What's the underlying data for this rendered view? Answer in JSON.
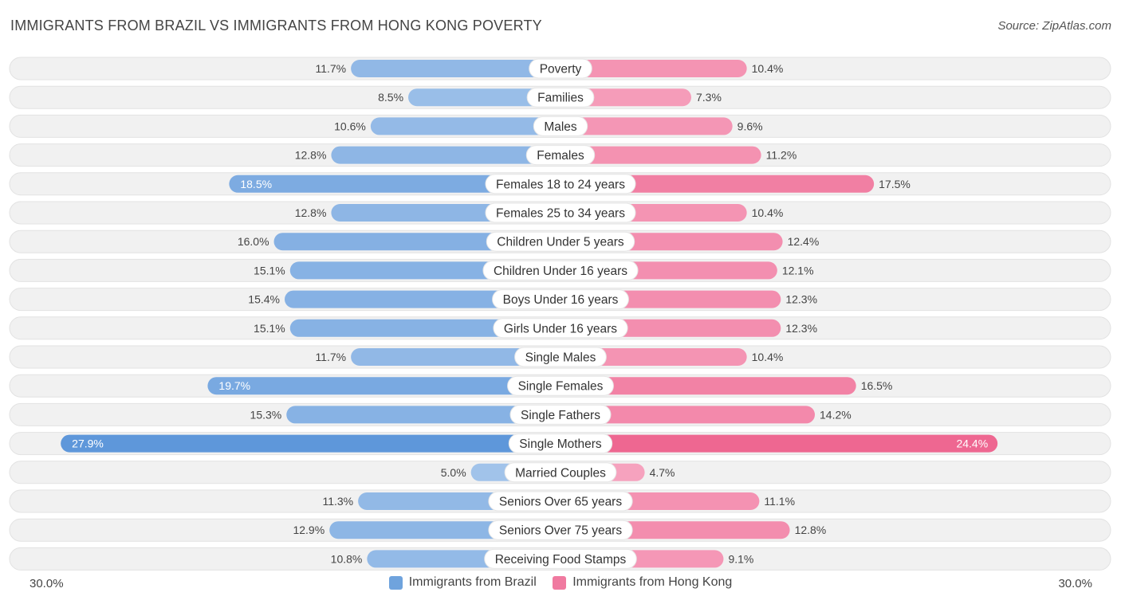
{
  "title": "IMMIGRANTS FROM BRAZIL VS IMMIGRANTS FROM HONG KONG POVERTY",
  "source": "Source: ZipAtlas.com",
  "colors": {
    "brazil": "#6fa3dd",
    "brazil_light": "#a9c8ec",
    "brazil_strong": "#5e97da",
    "hongkong": "#f07aa0",
    "hongkong_light": "#f7aac4",
    "hongkong_strong": "#ee6791"
  },
  "chart_data": {
    "type": "bar",
    "orientation": "horizontal-diverging",
    "title": "IMMIGRANTS FROM BRAZIL VS IMMIGRANTS FROM HONG KONG POVERTY",
    "axis_min_label": "30.0%",
    "axis_max_label": "30.0%",
    "xlim": [
      -30,
      30
    ],
    "categories": [
      "Poverty",
      "Families",
      "Males",
      "Females",
      "Females 18 to 24 years",
      "Females 25 to 34 years",
      "Children Under 5 years",
      "Children Under 16 years",
      "Boys Under 16 years",
      "Girls Under 16 years",
      "Single Males",
      "Single Females",
      "Single Fathers",
      "Single Mothers",
      "Married Couples",
      "Seniors Over 65 years",
      "Seniors Over 75 years",
      "Receiving Food Stamps"
    ],
    "series": [
      {
        "name": "Immigrants from Brazil",
        "values": [
          11.7,
          8.5,
          10.6,
          12.8,
          18.5,
          12.8,
          16.0,
          15.1,
          15.4,
          15.1,
          11.7,
          19.7,
          15.3,
          27.9,
          5.0,
          11.3,
          12.9,
          10.8
        ],
        "labels": [
          "11.7%",
          "8.5%",
          "10.6%",
          "12.8%",
          "18.5%",
          "12.8%",
          "16.0%",
          "15.1%",
          "15.4%",
          "15.1%",
          "11.7%",
          "19.7%",
          "15.3%",
          "27.9%",
          "5.0%",
          "11.3%",
          "12.9%",
          "10.8%"
        ]
      },
      {
        "name": "Immigrants from Hong Kong",
        "values": [
          10.4,
          7.3,
          9.6,
          11.2,
          17.5,
          10.4,
          12.4,
          12.1,
          12.3,
          12.3,
          10.4,
          16.5,
          14.2,
          24.4,
          4.7,
          11.1,
          12.8,
          9.1
        ],
        "labels": [
          "10.4%",
          "7.3%",
          "9.6%",
          "11.2%",
          "17.5%",
          "10.4%",
          "12.4%",
          "12.1%",
          "12.3%",
          "12.3%",
          "10.4%",
          "16.5%",
          "14.2%",
          "24.4%",
          "4.7%",
          "11.1%",
          "12.8%",
          "9.1%"
        ]
      }
    ],
    "legend": [
      "Immigrants from Brazil",
      "Immigrants from Hong Kong"
    ],
    "legend_position": "bottom-center"
  }
}
